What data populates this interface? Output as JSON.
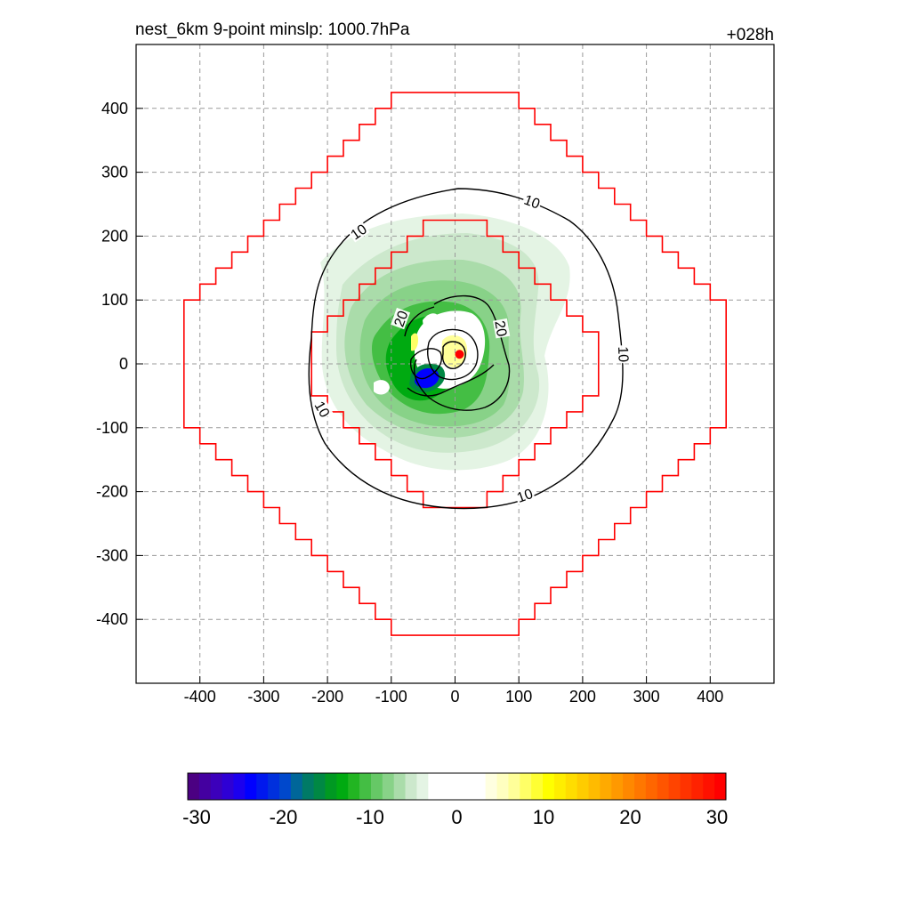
{
  "chart_data": {
    "type": "contour",
    "title_left": "nest_6km  9-point minslp: 1000.7hPa",
    "title_right": "+028h",
    "xlim": [
      -500,
      500
    ],
    "ylim": [
      -500,
      500
    ],
    "xticks": [
      -400,
      -300,
      -200,
      -100,
      0,
      100,
      200,
      300,
      400
    ],
    "yticks": [
      -400,
      -300,
      -200,
      -100,
      0,
      100,
      200,
      300,
      400
    ],
    "xtick_labels": [
      "-400",
      "-300",
      "-200",
      "-100",
      "0",
      "100",
      "200",
      "300",
      "400"
    ],
    "ytick_labels": [
      "400",
      "300",
      "200",
      "100",
      "0",
      "-100",
      "-200",
      "-300",
      "-400"
    ],
    "grid": true,
    "center_marker": {
      "x": 7,
      "y": 15,
      "color": "#ff0000"
    },
    "red_boxes": [
      {
        "name": "outer",
        "half_width": 425,
        "color": "#ff0000"
      },
      {
        "name": "inner",
        "half_width": 225,
        "color": "#ff0000"
      }
    ],
    "contour_labels": [
      {
        "text": "10",
        "x": 120,
        "y": 252,
        "rot": 20
      },
      {
        "text": "10",
        "x": -150,
        "y": 205,
        "rot": -35
      },
      {
        "text": "10",
        "x": 262,
        "y": 15,
        "rot": 88
      },
      {
        "text": "10",
        "x": -210,
        "y": -72,
        "rot": 60
      },
      {
        "text": "10",
        "x": 110,
        "y": -208,
        "rot": -20
      },
      {
        "text": "20",
        "x": -83,
        "y": 70,
        "rot": -70
      },
      {
        "text": "20",
        "x": 70,
        "y": 55,
        "rot": 80
      }
    ],
    "colorbar": {
      "vmin": -30,
      "vmax": 30,
      "tick_labels": [
        "-30",
        "-20",
        "-10",
        "0",
        "10",
        "20",
        "30"
      ],
      "colors": [
        "#4b0082",
        "#4400a0",
        "#3c00bb",
        "#2e00d5",
        "#1c00ee",
        "#0000ff",
        "#0018ee",
        "#0030dd",
        "#0048cc",
        "#006699",
        "#007a66",
        "#008844",
        "#009922",
        "#00aa11",
        "#22b522",
        "#44be44",
        "#66c866",
        "#88d288",
        "#aadcaa",
        "#cce8cc",
        "#e4f4e4",
        "#ffffff",
        "#ffffff",
        "#ffffff",
        "#ffffff",
        "#ffffff",
        "#ffffe0",
        "#ffffc0",
        "#ffff99",
        "#ffff66",
        "#ffff33",
        "#ffff00",
        "#ffee00",
        "#ffdd00",
        "#ffcc00",
        "#ffbb00",
        "#ffaa00",
        "#ff9900",
        "#ff8800",
        "#ff7700",
        "#ff6600",
        "#ff5500",
        "#ff4400",
        "#ff3300",
        "#ff2200",
        "#ff1100",
        "#ff0000"
      ]
    }
  }
}
